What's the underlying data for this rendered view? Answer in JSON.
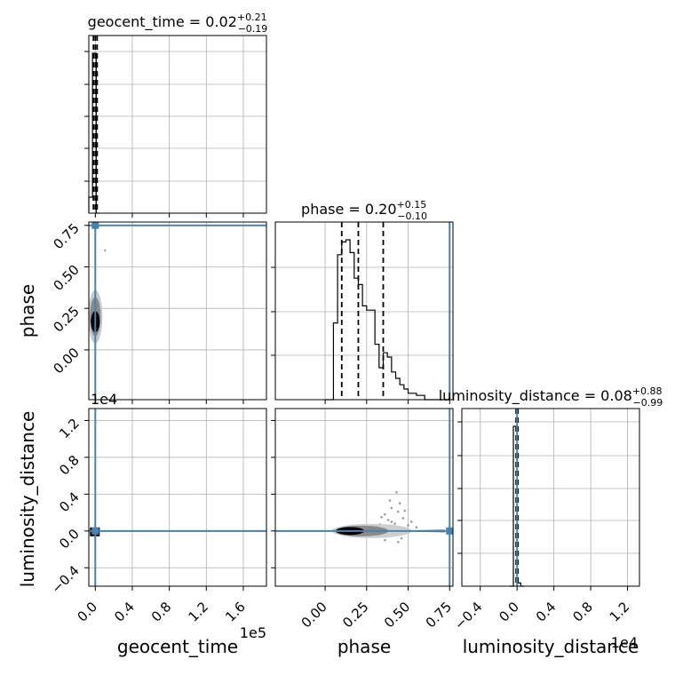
{
  "chart_data": {
    "type": "corner",
    "parameters": [
      "geocent_time",
      "phase",
      "luminosity_distance"
    ],
    "titles": {
      "geocent_time": {
        "name": "geocent_time",
        "median": "0.02",
        "plus": "+0.21",
        "minus": "−0.19"
      },
      "phase": {
        "name": "phase",
        "median": "0.20",
        "plus": "+0.15",
        "minus": "−0.10"
      },
      "luminosity_distance": {
        "name": "luminosity_distance",
        "median": "0.08",
        "plus": "+0.88",
        "minus": "−0.99"
      }
    },
    "axis_labels": {
      "geocent_time": "geocent_time",
      "phase": "phase",
      "luminosity_distance": "luminosity_distance"
    },
    "multipliers": {
      "geocent_time_x": "1e5",
      "luminosity_distance_y": "1e4",
      "luminosity_distance_x": "1e4"
    },
    "ranges": {
      "geocent_time": [
        -0.07,
        1.85
      ],
      "phase": [
        -0.3,
        0.77
      ],
      "luminosity_distance": [
        -0.6,
        1.33
      ]
    },
    "ticks": {
      "geocent_time": {
        "values": [
          0.0,
          0.4,
          0.8,
          1.2,
          1.6
        ],
        "labels": [
          "0.0",
          "0.4",
          "0.8",
          "1.2",
          "1.6"
        ]
      },
      "phase": {
        "values": [
          0.0,
          0.25,
          0.5,
          0.75
        ],
        "labels": [
          "0.00",
          "0.25",
          "0.50",
          "0.75"
        ]
      },
      "luminosity_distance": {
        "values": [
          -0.4,
          0.0,
          0.4,
          0.8,
          1.2
        ],
        "labels": [
          "−0.4",
          "0.0",
          "0.4",
          "0.8",
          "1.2"
        ]
      }
    },
    "truths": {
      "geocent_time": 0.0,
      "phase": 0.75,
      "luminosity_distance": 0.0
    },
    "quantiles": {
      "geocent_time": [
        -0.02,
        0.0,
        0.02
      ],
      "phase": [
        0.1,
        0.2,
        0.35
      ],
      "luminosity_distance": [
        -0.01,
        0.0,
        0.01
      ]
    },
    "histograms": {
      "geocent_time": {
        "edges": [
          -0.07,
          -0.03,
          0.01,
          0.05
        ],
        "counts": [
          0.1,
          1.0,
          0.0
        ]
      },
      "phase": {
        "edges": [
          0.0,
          0.05,
          0.075,
          0.1,
          0.125,
          0.15,
          0.175,
          0.2,
          0.225,
          0.25,
          0.3,
          0.325,
          0.35,
          0.375,
          0.4,
          0.425,
          0.45,
          0.475,
          0.5,
          0.525,
          0.55,
          0.6,
          0.65,
          0.7,
          0.75
        ],
        "counts": [
          0.0,
          0.36,
          0.68,
          0.74,
          0.75,
          0.69,
          0.57,
          0.54,
          0.44,
          0.42,
          0.26,
          0.15,
          0.22,
          0.2,
          0.13,
          0.1,
          0.07,
          0.05,
          0.03,
          0.03,
          0.02,
          0.0,
          0.0,
          0.0
        ]
      },
      "luminosity_distance": {
        "edges": [
          -0.08,
          -0.04,
          0.0,
          0.04,
          0.08
        ],
        "counts": [
          0.0,
          1.0,
          0.02,
          0.0
        ]
      }
    },
    "grid": true,
    "colors": {
      "truth": "#4682b4",
      "hist": "#000000",
      "grid": "#b0b0b0",
      "scatter": "#9a9a9a"
    }
  }
}
